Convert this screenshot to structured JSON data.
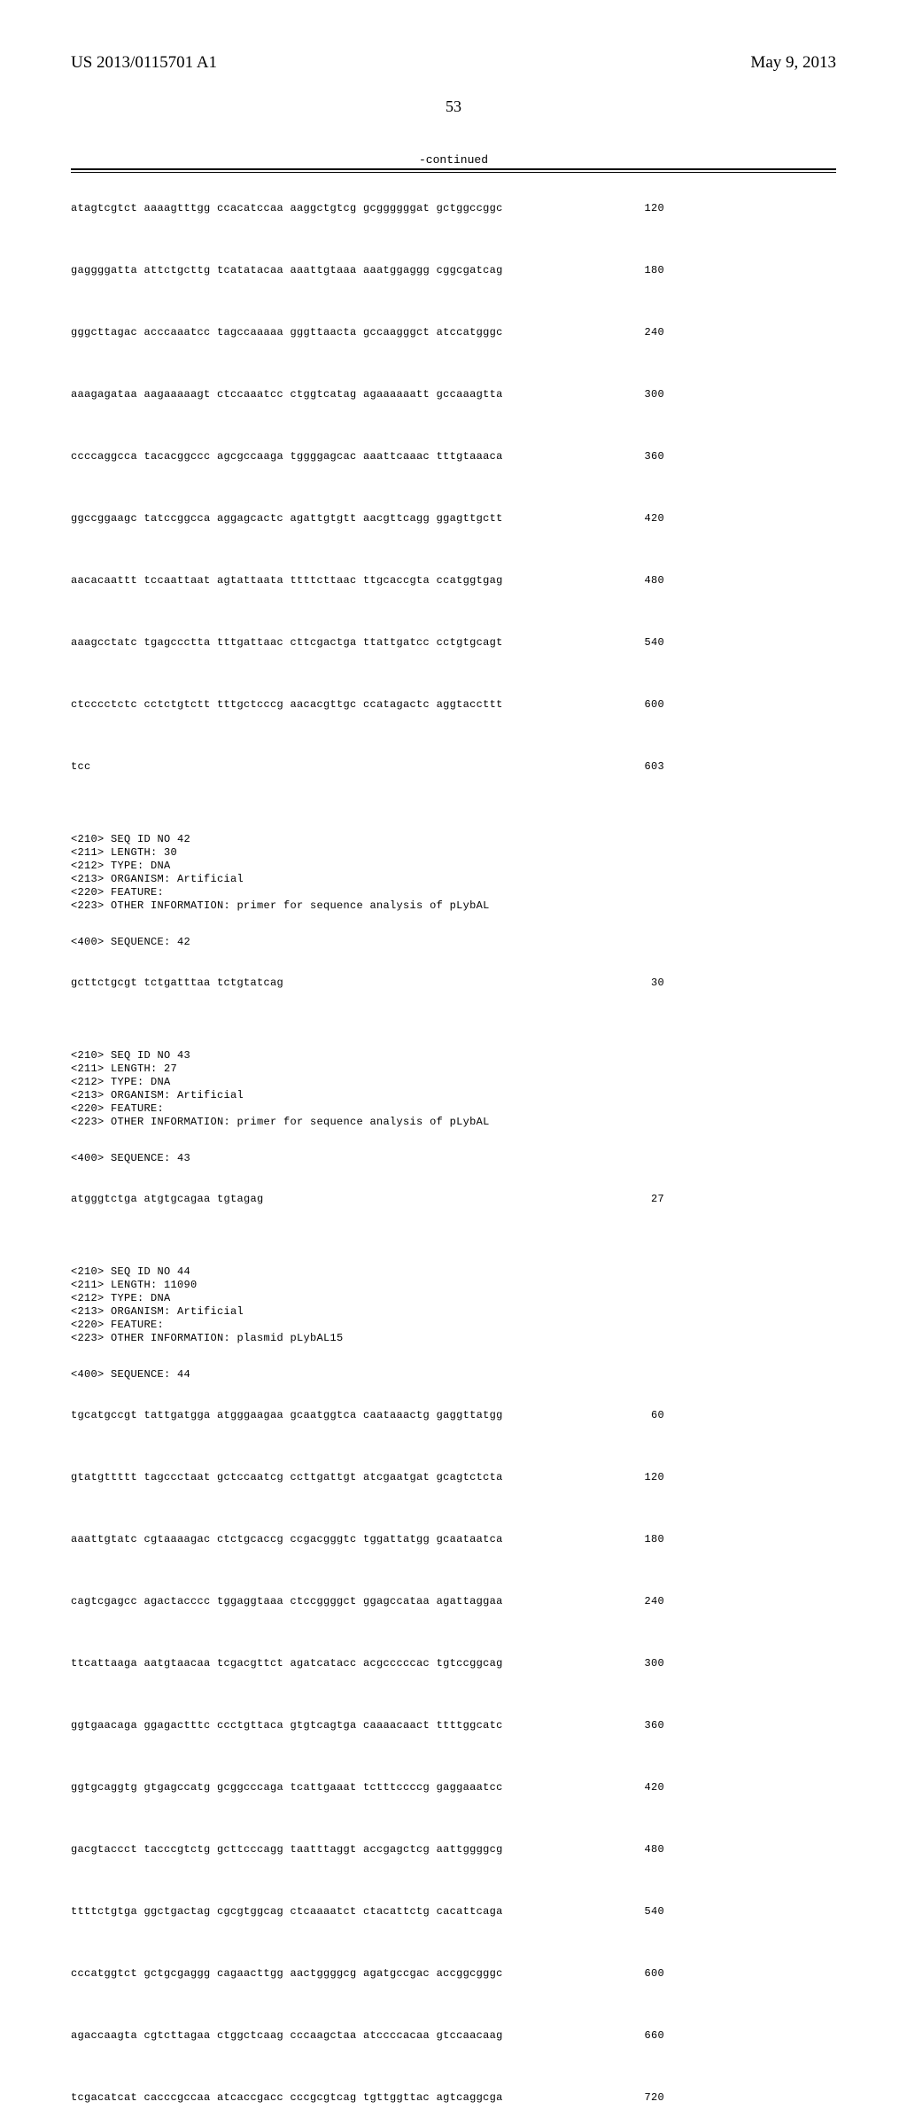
{
  "header": {
    "pub_number": "US 2013/0115701 A1",
    "pub_date": "May 9, 2013"
  },
  "page_number": "53",
  "continued_label": "-continued",
  "seq41_rows": [
    {
      "text": "atagtcgtct aaaagtttgg ccacatccaa aaggctgtcg gcggggggat gctggccggc",
      "num": "120"
    },
    {
      "text": "gaggggatta attctgcttg tcatatacaa aaattgtaaa aaatggaggg cggcgatcag",
      "num": "180"
    },
    {
      "text": "gggcttagac acccaaatcc tagccaaaaa gggttaacta gccaagggct atccatgggc",
      "num": "240"
    },
    {
      "text": "aaagagataa aagaaaaagt ctccaaatcc ctggtcatag agaaaaaatt gccaaagtta",
      "num": "300"
    },
    {
      "text": "ccccaggcca tacacggccc agcgccaaga tggggagcac aaattcaaac tttgtaaaca",
      "num": "360"
    },
    {
      "text": "ggccggaagc tatccggcca aggagcactc agattgtgtt aacgttcagg ggagttgctt",
      "num": "420"
    },
    {
      "text": "aacacaattt tccaattaat agtattaata ttttcttaac ttgcaccgta ccatggtgag",
      "num": "480"
    },
    {
      "text": "aaagcctatc tgagccctta tttgattaac cttcgactga ttattgatcc cctgtgcagt",
      "num": "540"
    },
    {
      "text": "ctcccctctc cctctgtctt tttgctcccg aacacgttgc ccatagactc aggtaccttt",
      "num": "600"
    },
    {
      "text": "tcc",
      "num": "603"
    }
  ],
  "seq42_meta": [
    "<210> SEQ ID NO 42",
    "<211> LENGTH: 30",
    "<212> TYPE: DNA",
    "<213> ORGANISM: Artificial",
    "<220> FEATURE:",
    "<223> OTHER INFORMATION: primer for sequence analysis of pLybAL"
  ],
  "seq42_seq_label": "<400> SEQUENCE: 42",
  "seq42_row": {
    "text": "gcttctgcgt tctgatttaa tctgtatcag",
    "num": "30"
  },
  "seq43_meta": [
    "<210> SEQ ID NO 43",
    "<211> LENGTH: 27",
    "<212> TYPE: DNA",
    "<213> ORGANISM: Artificial",
    "<220> FEATURE:",
    "<223> OTHER INFORMATION: primer for sequence analysis of pLybAL"
  ],
  "seq43_seq_label": "<400> SEQUENCE: 43",
  "seq43_row": {
    "text": "atgggtctga atgtgcagaa tgtagag",
    "num": "27"
  },
  "seq44_meta": [
    "<210> SEQ ID NO 44",
    "<211> LENGTH: 11090",
    "<212> TYPE: DNA",
    "<213> ORGANISM: Artificial",
    "<220> FEATURE:",
    "<223> OTHER INFORMATION: plasmid pLybAL15"
  ],
  "seq44_seq_label": "<400> SEQUENCE: 44",
  "seq44_rows": [
    {
      "text": "tgcatgccgt tattgatgga atgggaagaa gcaatggtca caataaactg gaggttatgg",
      "num": "60"
    },
    {
      "text": "gtatgttttt tagccctaat gctccaatcg ccttgattgt atcgaatgat gcagtctcta",
      "num": "120"
    },
    {
      "text": "aaattgtatc cgtaaaagac ctctgcaccg ccgacgggtc tggattatgg gcaataatca",
      "num": "180"
    },
    {
      "text": "cagtcgagcc agactacccc tggaggtaaa ctccggggct ggagccataa agattaggaa",
      "num": "240"
    },
    {
      "text": "ttcattaaga aatgtaacaa tcgacgttct agatcatacc acgcccccac tgtccggcag",
      "num": "300"
    },
    {
      "text": "ggtgaacaga ggagactttc ccctgttaca gtgtcagtga caaaacaact ttttggcatc",
      "num": "360"
    },
    {
      "text": "ggtgcaggtg gtgagccatg gcggcccaga tcattgaaat tctttccccg gaggaaatcc",
      "num": "420"
    },
    {
      "text": "gacgtaccct tacccgtctg gcttcccagg taatttaggt accgagctcg aattggggcg",
      "num": "480"
    },
    {
      "text": "ttttctgtga ggctgactag cgcgtggcag ctcaaaatct ctacattctg cacattcaga",
      "num": "540"
    },
    {
      "text": "cccatggtct gctgcgaggg cagaacttgg aactggggcg agatgccgac accggcgggc",
      "num": "600"
    },
    {
      "text": "agaccaagta cgtcttagaa ctggctcaag cccaagctaa atccccacaa gtccaacaag",
      "num": "660"
    },
    {
      "text": "tcgacatcat cacccgccaa atcaccgacc cccgcgtcag tgttggttac agtcaggcga",
      "num": "720"
    }
  ],
  "colors": {
    "text": "#000000",
    "background": "#ffffff",
    "rule": "#000000"
  },
  "fonts": {
    "header_family": "Times New Roman",
    "header_size_pt": 14,
    "sequence_family": "Courier New",
    "sequence_size_pt": 9
  }
}
